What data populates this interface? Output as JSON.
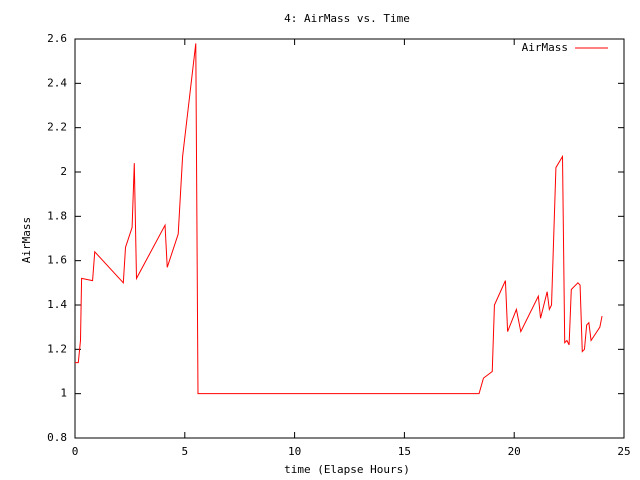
{
  "chart_data": {
    "type": "line",
    "title": "4: AirMass vs. Time",
    "x_label": "time (Elapse Hours)",
    "y_label": "AirMass",
    "x": [
      0,
      0.15,
      0.25,
      0.3,
      0.8,
      0.9,
      2.2,
      2.3,
      2.6,
      2.7,
      2.8,
      4.1,
      4.2,
      4.7,
      4.9,
      5.5,
      5.55,
      5.6,
      18.4,
      18.6,
      19.0,
      19.1,
      19.6,
      19.7,
      20.1,
      20.3,
      21.1,
      21.2,
      21.5,
      21.6,
      21.7,
      21.9,
      22.2,
      22.3,
      22.4,
      22.5,
      22.6,
      22.9,
      23.0,
      23.1,
      23.2,
      23.3,
      23.4,
      23.5,
      23.9,
      24.0
    ],
    "series": [
      {
        "name": "AirMass",
        "color": "#ff0000",
        "values": [
          1.14,
          1.14,
          1.24,
          1.52,
          1.51,
          1.64,
          1.5,
          1.66,
          1.75,
          2.04,
          1.52,
          1.76,
          1.57,
          1.72,
          2.07,
          2.58,
          1.8,
          1.0,
          1.0,
          1.07,
          1.1,
          1.4,
          1.51,
          1.28,
          1.38,
          1.28,
          1.44,
          1.34,
          1.46,
          1.38,
          1.4,
          2.02,
          2.07,
          1.23,
          1.24,
          1.22,
          1.47,
          1.5,
          1.49,
          1.19,
          1.2,
          1.31,
          1.32,
          1.24,
          1.3,
          1.35
        ]
      }
    ],
    "xlim": [
      0,
      25
    ],
    "xticks": [
      0,
      5,
      10,
      15,
      20,
      25
    ],
    "ylim": [
      0.8,
      2.6
    ],
    "yticks": [
      0.8,
      1,
      1.2,
      1.4,
      1.6,
      1.8,
      2,
      2.2,
      2.4,
      2.6
    ],
    "legend": "top-right",
    "grid": false
  }
}
